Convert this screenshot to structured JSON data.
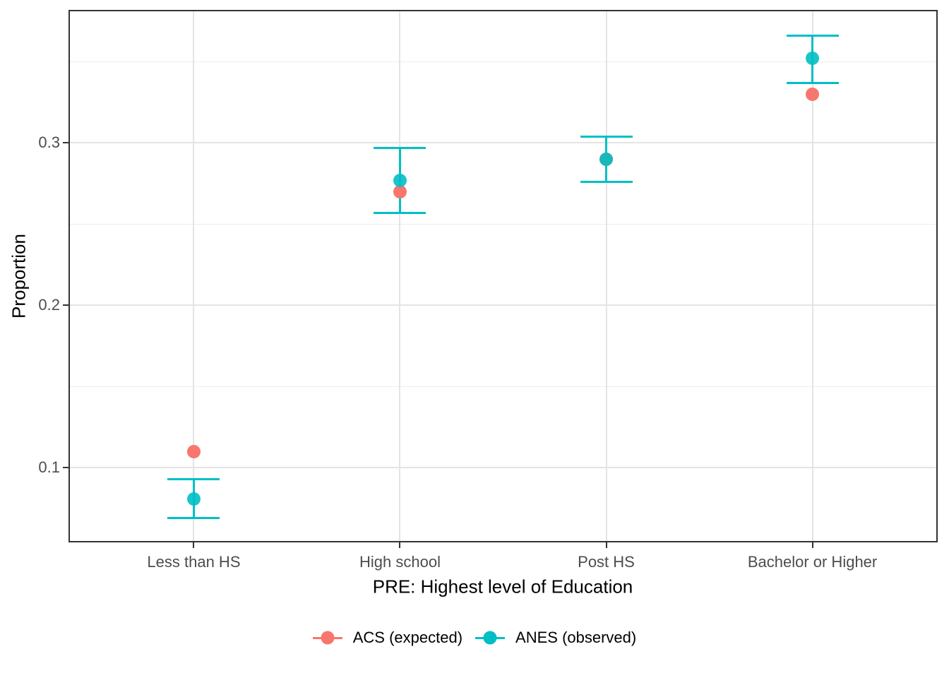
{
  "chart_data": {
    "type": "scatter",
    "subtype": "pointrange",
    "title": "",
    "xlabel": "PRE: Highest level of Education",
    "ylabel": "Proportion",
    "categories": [
      "Less than HS",
      "High school",
      "Post HS",
      "Bachelor or Higher"
    ],
    "series": [
      {
        "name": "ACS (expected)",
        "color": "#F8766D",
        "values": [
          0.11,
          0.27,
          0.29,
          0.33
        ]
      },
      {
        "name": "ANES (observed)",
        "color": "#00BFC4",
        "values": [
          0.081,
          0.277,
          0.29,
          0.352
        ],
        "ci_low": [
          0.069,
          0.257,
          0.276,
          0.337
        ],
        "ci_high": [
          0.093,
          0.297,
          0.304,
          0.366
        ]
      }
    ],
    "y_tick_labels": [
      "0.1",
      "0.2",
      "0.3"
    ],
    "y_tick_values": [
      0.1,
      0.2,
      0.3
    ],
    "y_minor_values": [
      0.15,
      0.25,
      0.35
    ],
    "ylim": [
      0.055,
      0.381
    ],
    "grid": "on",
    "legend_position": "bottom",
    "colors": {
      "acs": "#F8766D",
      "anes": "#00BFC4",
      "grid_major": "#e4e4e4",
      "grid_minor": "#ededed",
      "axis_text": "#4d4d4d",
      "panel_border": "#333333"
    }
  }
}
